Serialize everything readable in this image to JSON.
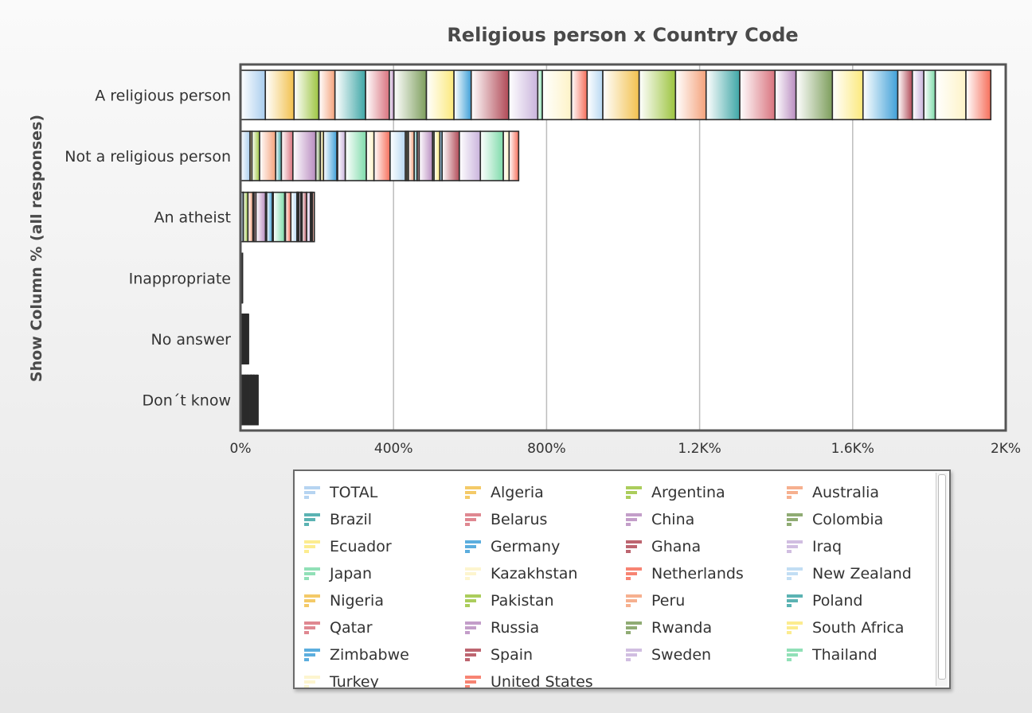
{
  "chart_data": {
    "type": "bar",
    "orientation": "horizontal",
    "stacked": true,
    "title": "Religious person x Country Code",
    "ylabel": "Show Column % (all responses)",
    "xlabel": "",
    "xlim": [
      0,
      2000
    ],
    "x_ticks": [
      0,
      400,
      800,
      1200,
      1600,
      2000
    ],
    "x_tick_labels": [
      "0%",
      "400%",
      "800%",
      "1.2K%",
      "1.6K%",
      "2K%"
    ],
    "grid": true,
    "legend_position": "bottom",
    "categories": [
      "A religious person",
      "Not a religious person",
      "An atheist",
      "Inappropriate",
      "No answer",
      "Don´t know"
    ],
    "series": [
      {
        "name": "TOTAL",
        "color": "#a9cdee",
        "values": [
          65,
          25,
          7,
          0.2,
          1.5,
          3
        ]
      },
      {
        "name": "Algeria",
        "color": "#f2c14e",
        "values": [
          75,
          5,
          0.5,
          0.1,
          0.5,
          1
        ]
      },
      {
        "name": "Argentina",
        "color": "#9cc43f",
        "values": [
          65,
          20,
          12,
          0.3,
          0.5,
          1.5
        ]
      },
      {
        "name": "Australia",
        "color": "#f4a27b",
        "values": [
          42,
          42,
          13,
          0.3,
          0.5,
          2
        ]
      },
      {
        "name": "Brazil",
        "color": "#3ea6a6",
        "values": [
          80,
          15,
          3,
          0.2,
          0.5,
          1.5
        ]
      },
      {
        "name": "Belarus",
        "color": "#d9737e",
        "values": [
          62,
          30,
          5,
          0.2,
          1,
          2
        ]
      },
      {
        "name": "China",
        "color": "#b98dc0",
        "values": [
          12,
          60,
          25,
          0.2,
          1,
          2
        ]
      },
      {
        "name": "Colombia",
        "color": "#7d9e5c",
        "values": [
          85,
          12,
          2,
          0.1,
          0.5,
          0.5
        ]
      },
      {
        "name": "Ecuador",
        "color": "#fbe97c",
        "values": [
          72,
          8,
          1,
          0.1,
          0.5,
          1
        ]
      },
      {
        "name": "Germany",
        "color": "#3fa0d8",
        "values": [
          45,
          35,
          15,
          0.2,
          1,
          3
        ]
      },
      {
        "name": "Ghana",
        "color": "#b14a57",
        "values": [
          98,
          2,
          0.2,
          0.1,
          0.2,
          0.5
        ]
      },
      {
        "name": "Iraq",
        "color": "#c9b3dc",
        "values": [
          76,
          20,
          2,
          0.2,
          1,
          1
        ]
      },
      {
        "name": "Japan",
        "color": "#7edbaa",
        "values": [
          12,
          55,
          30,
          0.2,
          1,
          2
        ]
      },
      {
        "name": "Kazakhstan",
        "color": "#fdf3c7",
        "values": [
          76,
          20,
          2,
          0.1,
          0.5,
          1.5
        ]
      },
      {
        "name": "Netherlands",
        "color": "#f66e5a",
        "values": [
          41,
          42,
          14,
          0.3,
          1,
          2
        ]
      },
      {
        "name": "New Zealand",
        "color": "#b7d8f2",
        "values": [
          41,
          40,
          16,
          0.3,
          1,
          2
        ]
      },
      {
        "name": "Nigeria",
        "color": "#f2c14e",
        "values": [
          95,
          4,
          0.5,
          0.1,
          0.3,
          0.5
        ]
      },
      {
        "name": "Pakistan",
        "color": "#9cc43f",
        "values": [
          95,
          4,
          0.2,
          0.1,
          0.3,
          0.5
        ]
      },
      {
        "name": "Peru",
        "color": "#f4a27b",
        "values": [
          80,
          15,
          2,
          0.1,
          0.5,
          1
        ]
      },
      {
        "name": "Poland",
        "color": "#3ea6a6",
        "values": [
          88,
          8,
          2,
          0.1,
          0.5,
          1
        ]
      },
      {
        "name": "Qatar",
        "color": "#d9737e",
        "values": [
          92,
          5,
          0.5,
          0.1,
          0.5,
          1
        ]
      },
      {
        "name": "Russia",
        "color": "#b98dc0",
        "values": [
          55,
          35,
          5,
          0.2,
          1,
          3
        ]
      },
      {
        "name": "Rwanda",
        "color": "#7d9e5c",
        "values": [
          95,
          4,
          0.2,
          0.1,
          0.3,
          0.5
        ]
      },
      {
        "name": "South Africa",
        "color": "#fbe97c",
        "values": [
          80,
          15,
          2,
          0.1,
          0.5,
          1
        ]
      },
      {
        "name": "Zimbabwe",
        "color": "#3fa0d8",
        "values": [
          91,
          6,
          1,
          0.1,
          0.5,
          1
        ]
      },
      {
        "name": "Spain",
        "color": "#b14a57",
        "values": [
          38,
          45,
          12,
          0.3,
          1,
          2
        ]
      },
      {
        "name": "Sweden",
        "color": "#c9b3dc",
        "values": [
          30,
          55,
          10,
          0.3,
          1,
          3
        ]
      },
      {
        "name": "Thailand",
        "color": "#7edbaa",
        "values": [
          30,
          60,
          2,
          0.2,
          1,
          2
        ]
      },
      {
        "name": "Turkey",
        "color": "#fdf3c7",
        "values": [
          80,
          15,
          3,
          0.1,
          0.5,
          1
        ]
      },
      {
        "name": "United States",
        "color": "#f66e5a",
        "values": [
          65,
          25,
          5,
          0.2,
          1,
          2
        ]
      }
    ]
  }
}
